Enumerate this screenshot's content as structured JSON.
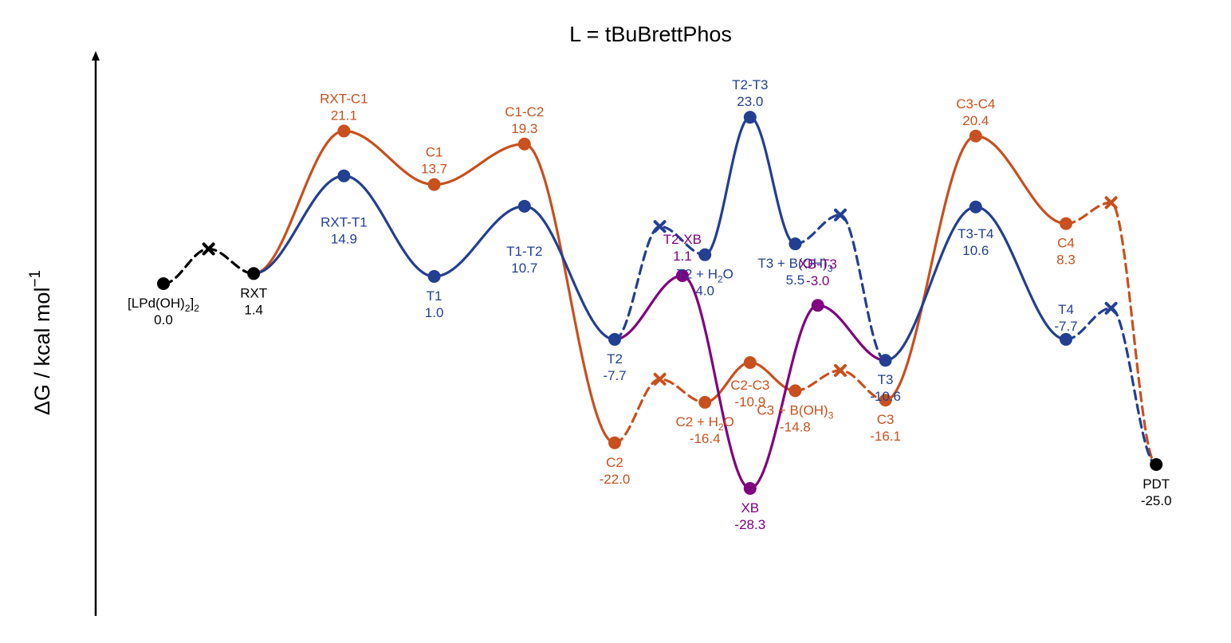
{
  "chart_data": {
    "type": "energy-profile",
    "title": "L = tBuBrettPhos",
    "ylabel": "ΔG / kcal mol",
    "ylabel_superscript": "−1",
    "ylim": [
      -35,
      30
    ],
    "colors": {
      "common": "#000000",
      "C": "#C8501E",
      "T": "#233F91",
      "XB": "#800080"
    },
    "points": [
      {
        "id": "lpd",
        "label": "[LPd(OH)",
        "label_sub": "2",
        "label_tail": "]",
        "label_sub2": "2",
        "value_label": "0.0",
        "x": 0,
        "y": 0.0,
        "series": "common"
      },
      {
        "id": "rxt",
        "label": "RXT",
        "value_label": "1.4",
        "x": 2,
        "y": 1.4,
        "series": "common"
      },
      {
        "id": "rxt_c1",
        "label": "RXT-C1",
        "value_label": "21.1",
        "x": 4,
        "y": 21.1,
        "series": "C"
      },
      {
        "id": "c1",
        "label": "C1",
        "value_label": "13.7",
        "x": 6,
        "y": 13.7,
        "series": "C"
      },
      {
        "id": "c1_c2",
        "label": "C1-C2",
        "value_label": "19.3",
        "x": 8,
        "y": 19.3,
        "series": "C"
      },
      {
        "id": "c2",
        "label": "C2",
        "value_label": "-22.0",
        "x": 10,
        "y": -22.0,
        "series": "C"
      },
      {
        "id": "c2h2o",
        "label": "C2 + H",
        "label_sub": "2",
        "label_tail": "O",
        "value_label": "-16.4",
        "x": 12,
        "y": -16.4,
        "series": "C"
      },
      {
        "id": "c2_c3",
        "label": "C2-C3",
        "value_label": "-10.9",
        "x": 13,
        "y": -10.9,
        "series": "C"
      },
      {
        "id": "c3boh",
        "label": "C3 + B(OH)",
        "label_sub": "3",
        "value_label": "-14.8",
        "x": 14,
        "y": -14.8,
        "series": "C"
      },
      {
        "id": "c3",
        "label": "C3",
        "value_label": "-16.1",
        "x": 16,
        "y": -16.1,
        "series": "C"
      },
      {
        "id": "c3_c4",
        "label": "C3-C4",
        "value_label": "20.4",
        "x": 18,
        "y": 20.4,
        "series": "C"
      },
      {
        "id": "c4",
        "label": "C4",
        "value_label": "8.3",
        "x": 20,
        "y": 8.3,
        "series": "C"
      },
      {
        "id": "rxt_t1",
        "label": "RXT-T1",
        "value_label": "14.9",
        "x": 4,
        "y": 14.9,
        "series": "T"
      },
      {
        "id": "t1",
        "label": "T1",
        "value_label": "1.0",
        "x": 6,
        "y": 1.0,
        "series": "T"
      },
      {
        "id": "t1_t2",
        "label": "T1-T2",
        "value_label": "10.7",
        "x": 8,
        "y": 10.7,
        "series": "T"
      },
      {
        "id": "t2",
        "label": "T2",
        "value_label": "-7.7",
        "x": 10,
        "y": -7.7,
        "series": "T"
      },
      {
        "id": "t2h2o",
        "label": "T2 + H",
        "label_sub": "2",
        "label_tail": "O",
        "value_label": "4.0",
        "x": 12,
        "y": 4.0,
        "series": "T"
      },
      {
        "id": "t2_t3",
        "label": "T2-T3",
        "value_label": "23.0",
        "x": 13,
        "y": 23.0,
        "series": "T"
      },
      {
        "id": "t3boh",
        "label": "T3 + B(OH)",
        "label_sub": "3",
        "value_label": "5.5",
        "x": 14,
        "y": 5.5,
        "series": "T"
      },
      {
        "id": "t3",
        "label": "T3",
        "value_label": "-10.6",
        "x": 16,
        "y": -10.6,
        "series": "T"
      },
      {
        "id": "t3_t4",
        "label": "T3-T4",
        "value_label": "10.6",
        "x": 18,
        "y": 10.6,
        "series": "T"
      },
      {
        "id": "t4",
        "label": "T4",
        "value_label": "-7.7",
        "x": 20,
        "y": -7.7,
        "series": "T"
      },
      {
        "id": "t2_xb",
        "label": "T2-XB",
        "value_label": "1.1",
        "x": 11.5,
        "y": 1.1,
        "series": "XB"
      },
      {
        "id": "xb",
        "label": "XB",
        "value_label": "-28.3",
        "x": 13,
        "y": -28.3,
        "series": "XB"
      },
      {
        "id": "xb_t3",
        "label": "XB-T3",
        "value_label": "-3.0",
        "x": 14.5,
        "y": -3.0,
        "series": "XB"
      },
      {
        "id": "pdt",
        "label": "PDT",
        "value_label": "-25.0",
        "x": 22,
        "y": -25.0,
        "series": "common"
      }
    ],
    "crosses": [
      {
        "id": "x_pre",
        "x": 1,
        "y": 4.8,
        "series": "common"
      },
      {
        "id": "x_c2",
        "x": 11,
        "y": -13.2,
        "series": "C"
      },
      {
        "id": "x_c3",
        "x": 15,
        "y": -12.0,
        "series": "C"
      },
      {
        "id": "x_c4",
        "x": 21,
        "y": 11.2,
        "series": "C"
      },
      {
        "id": "x_t2",
        "x": 11,
        "y": 7.9,
        "series": "T"
      },
      {
        "id": "x_t3",
        "x": 15,
        "y": 9.5,
        "series": "T"
      },
      {
        "id": "x_t4",
        "x": 21,
        "y": -3.4,
        "series": "T"
      }
    ],
    "segments": [
      {
        "series": "common",
        "dashed": true,
        "path": [
          "lpd",
          "x_pre",
          "rxt"
        ]
      },
      {
        "series": "C",
        "dashed": false,
        "path": [
          "rxt",
          "rxt_c1",
          "c1",
          "c1_c2",
          "c2"
        ]
      },
      {
        "series": "C",
        "dashed": true,
        "path": [
          "c2",
          "x_c2",
          "c2h2o"
        ]
      },
      {
        "series": "C",
        "dashed": false,
        "path": [
          "c2h2o",
          "c2_c3",
          "c3boh"
        ]
      },
      {
        "series": "C",
        "dashed": true,
        "path": [
          "c3boh",
          "x_c3",
          "c3"
        ]
      },
      {
        "series": "C",
        "dashed": false,
        "path": [
          "c3",
          "c3_c4",
          "c4"
        ]
      },
      {
        "series": "C",
        "dashed": true,
        "path": [
          "c4",
          "x_c4",
          "pdt"
        ]
      },
      {
        "series": "T",
        "dashed": false,
        "path": [
          "rxt",
          "rxt_t1",
          "t1",
          "t1_t2",
          "t2"
        ]
      },
      {
        "series": "T",
        "dashed": true,
        "path": [
          "t2",
          "x_t2",
          "t2h2o"
        ]
      },
      {
        "series": "T",
        "dashed": false,
        "path": [
          "t2h2o",
          "t2_t3",
          "t3boh"
        ]
      },
      {
        "series": "T",
        "dashed": true,
        "path": [
          "t3boh",
          "x_t3",
          "t3"
        ]
      },
      {
        "series": "T",
        "dashed": false,
        "path": [
          "t3",
          "t3_t4",
          "t4"
        ]
      },
      {
        "series": "T",
        "dashed": true,
        "path": [
          "t4",
          "x_t4",
          "pdt"
        ]
      },
      {
        "series": "XB",
        "dashed": false,
        "path": [
          "t2",
          "t2_xb",
          "xb",
          "xb_t3",
          "t3"
        ]
      }
    ]
  }
}
